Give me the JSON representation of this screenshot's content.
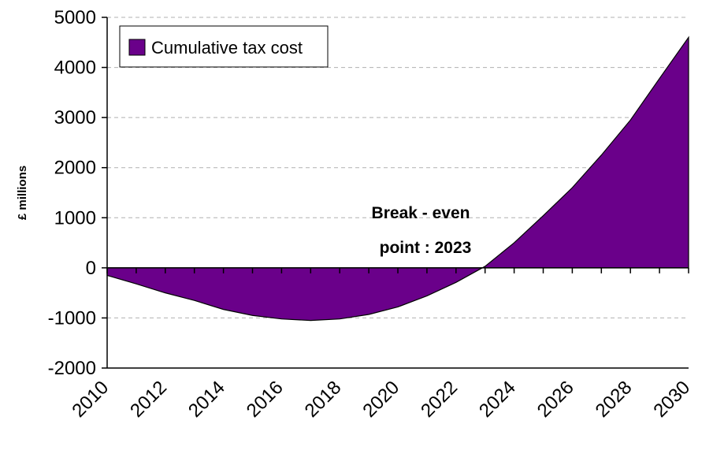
{
  "chart_data": {
    "type": "area",
    "title": "",
    "xlabel": "",
    "ylabel": "£ millions",
    "ylim": [
      -2000,
      5000
    ],
    "xlim": [
      2010,
      2030
    ],
    "yticks": [
      -2000,
      -1000,
      0,
      1000,
      2000,
      3000,
      4000,
      5000
    ],
    "ytick_labels": [
      "-2000",
      "-1000",
      "0",
      "1000",
      "2000",
      "3000",
      "4000",
      "5000"
    ],
    "xtick_labels": [
      "2010",
      "2012",
      "2014",
      "2016",
      "2018",
      "2020",
      "2022",
      "2024",
      "2026",
      "2028",
      "2030"
    ],
    "grid": "horizontal dashed",
    "legend_position": "top-left",
    "x": [
      2010,
      2011,
      2012,
      2013,
      2014,
      2015,
      2016,
      2017,
      2018,
      2019,
      2020,
      2021,
      2022,
      2023,
      2024,
      2025,
      2026,
      2027,
      2028,
      2029,
      2030
    ],
    "series": [
      {
        "name": "Cumulative tax cost",
        "color": "#6a008a",
        "values": [
          -150,
          -320,
          -500,
          -650,
          -830,
          -950,
          -1020,
          -1050,
          -1020,
          -930,
          -780,
          -560,
          -290,
          30,
          500,
          1040,
          1600,
          2250,
          2950,
          3780,
          4600
        ]
      }
    ],
    "annotation": {
      "line1": "Break - even",
      "line2": "point : 2023"
    }
  }
}
